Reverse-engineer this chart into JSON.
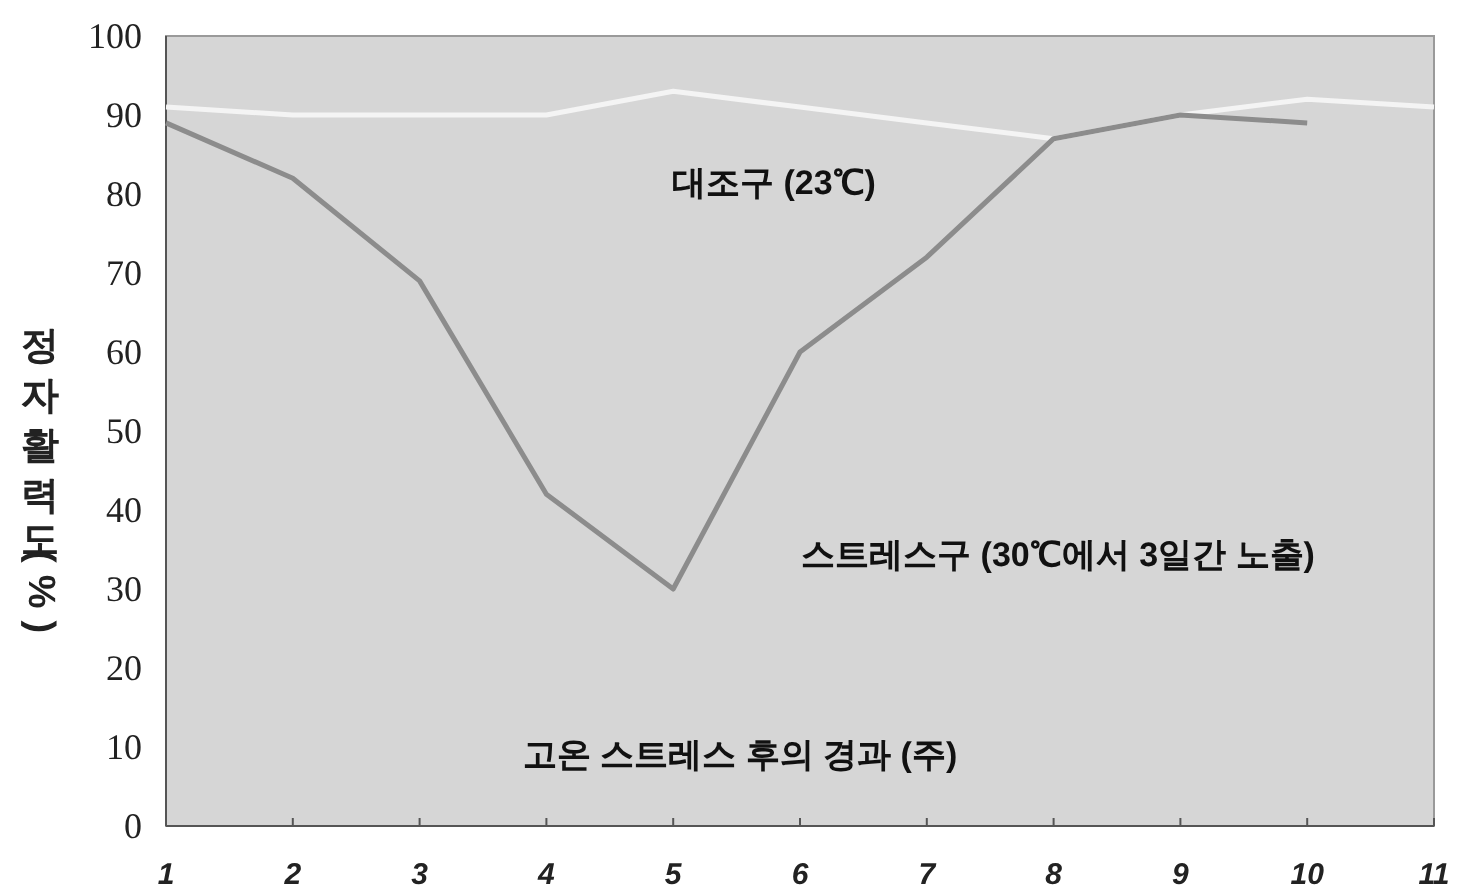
{
  "chart_data": {
    "type": "line",
    "xlabel": "고온 스트레스 후의 경과 (주)",
    "ylabel": "정자활력도(%)",
    "x": [
      1,
      2,
      3,
      4,
      5,
      6,
      7,
      8,
      9,
      10,
      11
    ],
    "series": [
      {
        "color": "#f4f4f4",
        "values": [
          91,
          90,
          90,
          90,
          93,
          91,
          89,
          87,
          90,
          92,
          91
        ]
      },
      {
        "color": "#8c8c8c",
        "values": [
          89,
          82,
          69,
          42,
          30,
          60,
          72,
          87,
          90,
          89,
          null
        ]
      }
    ],
    "annotations": [
      "대조구 (23℃)",
      "스트레스구 (30℃에서 3일간 노출)"
    ],
    "xlim": [
      1,
      11
    ],
    "xticks": [
      1,
      2,
      3,
      4,
      5,
      6,
      7,
      8,
      9,
      10,
      11
    ],
    "ylim": [
      0,
      100
    ],
    "yticks": [
      0,
      10,
      20,
      30,
      40,
      50,
      60,
      70,
      80,
      90,
      100
    ],
    "grid": false
  }
}
